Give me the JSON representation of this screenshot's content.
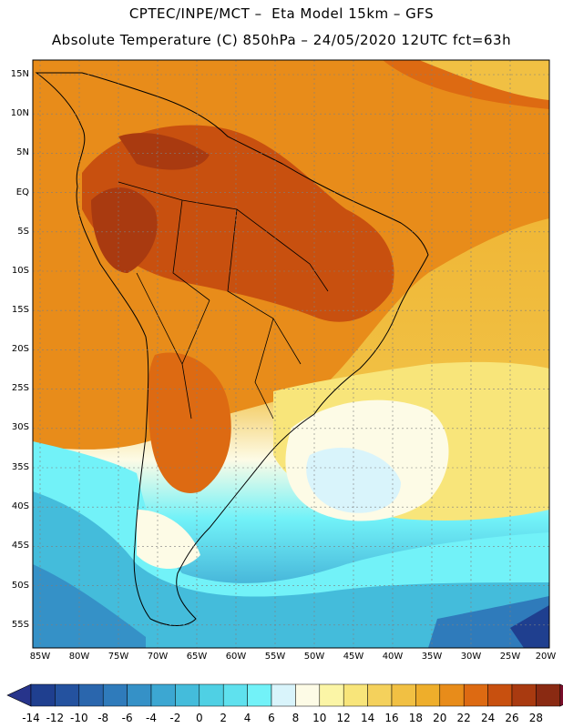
{
  "header": {
    "line1": "CPTEC/INPE/MCT –  Eta Model 15km – GFS",
    "line2": "Absolute Temperature (C) 850hPa – 24/05/2020 12UTC fct=63h"
  },
  "latitude_labels": [
    "15N",
    "10N",
    "5N",
    "EQ",
    "5S",
    "10S",
    "15S",
    "20S",
    "25S",
    "30S",
    "35S",
    "40S",
    "45S",
    "50S",
    "55S"
  ],
  "longitude_labels": [
    "85W",
    "80W",
    "75W",
    "70W",
    "65W",
    "60W",
    "55W",
    "50W",
    "45W",
    "40W",
    "35W",
    "30W",
    "25W",
    "20W"
  ],
  "colorbar": {
    "labels": [
      "-14",
      "-12",
      "-10",
      "-8",
      "-6",
      "-4",
      "-2",
      "0",
      "2",
      "4",
      "6",
      "8",
      "10",
      "12",
      "14",
      "16",
      "18",
      "20",
      "22",
      "24",
      "26",
      "28"
    ],
    "colors": [
      "#1f3f8f",
      "#24529f",
      "#2a66ad",
      "#2f7bbb",
      "#3591c7",
      "#3ca7d2",
      "#44bcdb",
      "#4fd0e4",
      "#5fe1ee",
      "#72f2f8",
      "#d9f4fb",
      "#fdfbe6",
      "#fbf5a6",
      "#f8e57a",
      "#f4d15c",
      "#f1c043",
      "#eeae2b",
      "#e88c1a",
      "#dd6a12",
      "#c8500f",
      "#a93a10",
      "#8a2a12"
    ],
    "under_color": "#27348b",
    "over_color": "#7a0d2a"
  }
}
